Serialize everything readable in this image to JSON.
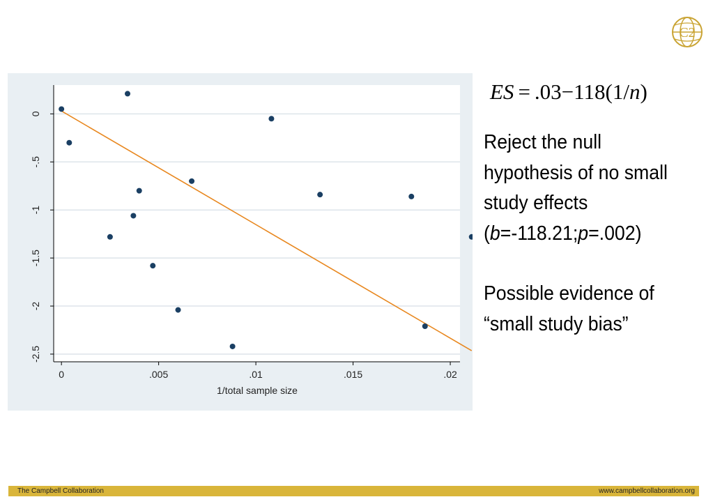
{
  "logo": {
    "icon": "campbell-globe-logo",
    "text": "C2",
    "color": "#c9a332"
  },
  "formula": {
    "lhs": "ES",
    "equals": "=",
    "intercept": ".03",
    "minus": "−",
    "coef": "118",
    "term_open": "(1/",
    "term_var": "n",
    "term_close": ")"
  },
  "text": {
    "line1": "Reject the null hypothesis of no small study effects",
    "stats_open": "(",
    "stats_b": "b",
    "stats_b_val": "=-118.21;",
    "stats_p": "p",
    "stats_p_val": "=.002)",
    "para2": "Possible evidence of “small study bias”"
  },
  "footer": {
    "left": "The Campbell Collaboration",
    "right": "www.campbellcollaboration.org",
    "color": "#d9b53a"
  },
  "chart_data": {
    "type": "scatter",
    "xlabel": "1/total sample size",
    "ylabel": "",
    "xlim": [
      -0.0004,
      0.0205
    ],
    "ylim": [
      -2.58,
      0.3
    ],
    "xticks": [
      0,
      0.005,
      0.01,
      0.015,
      0.02
    ],
    "xtick_labels": [
      "0",
      ".005",
      ".01",
      ".015",
      ".02"
    ],
    "yticks": [
      0,
      -0.5,
      -1,
      -1.5,
      -2,
      -2.5
    ],
    "ytick_labels": [
      "0",
      "-.5",
      "-1",
      "-1.5",
      "-2",
      "-2.5"
    ],
    "grid": true,
    "points": [
      {
        "x": 0.0,
        "y": 0.05
      },
      {
        "x": 0.0004,
        "y": -0.3
      },
      {
        "x": 0.0025,
        "y": -1.28
      },
      {
        "x": 0.0034,
        "y": 0.21
      },
      {
        "x": 0.0037,
        "y": -1.06
      },
      {
        "x": 0.004,
        "y": -0.8
      },
      {
        "x": 0.0047,
        "y": -1.58
      },
      {
        "x": 0.006,
        "y": -2.04
      },
      {
        "x": 0.0067,
        "y": -0.7
      },
      {
        "x": 0.0088,
        "y": -2.42
      },
      {
        "x": 0.0108,
        "y": -0.05
      },
      {
        "x": 0.0133,
        "y": -0.84
      },
      {
        "x": 0.018,
        "y": -0.86
      },
      {
        "x": 0.0187,
        "y": -2.21
      },
      {
        "x": 0.0211,
        "y": -1.28
      }
    ],
    "fit_line": {
      "intercept": 0.03,
      "slope": -118.21,
      "x_start": 0.0,
      "x_end": 0.0211,
      "color": "#e8871e"
    },
    "point_color": "#1a3f63"
  }
}
